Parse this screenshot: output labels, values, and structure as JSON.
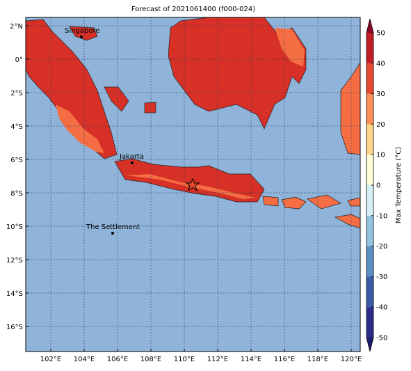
{
  "map": {
    "title": "Forecast of 2021061400 (f000-024)",
    "lon_ticks": [
      {
        "value": 102,
        "label": "102°E"
      },
      {
        "value": 104,
        "label": "104°E"
      },
      {
        "value": 106,
        "label": "106°E"
      },
      {
        "value": 108,
        "label": "108°E"
      },
      {
        "value": 110,
        "label": "110°E"
      },
      {
        "value": 112,
        "label": "112°E"
      },
      {
        "value": 114,
        "label": "114°E"
      },
      {
        "value": 116,
        "label": "116°E"
      },
      {
        "value": 118,
        "label": "118°E"
      },
      {
        "value": 120,
        "label": "120°E"
      }
    ],
    "lat_ticks": [
      {
        "value": 2,
        "label": "2°N"
      },
      {
        "value": 0,
        "label": "0°"
      },
      {
        "value": -2,
        "label": "2°S"
      },
      {
        "value": -4,
        "label": "4°S"
      },
      {
        "value": -6,
        "label": "6°S"
      },
      {
        "value": -8,
        "label": "8°S"
      },
      {
        "value": -10,
        "label": "10°S"
      },
      {
        "value": -12,
        "label": "12°S"
      },
      {
        "value": -14,
        "label": "14°S"
      },
      {
        "value": -16,
        "label": "16°S"
      }
    ],
    "places": [
      {
        "label": "Singapore"
      },
      {
        "label": "Jakarta"
      },
      {
        "label": "The Settlement"
      }
    ],
    "colorbar": {
      "label": "Max Temperature (°C)",
      "ticks": [
        -50,
        -40,
        -30,
        -20,
        -10,
        0,
        10,
        20,
        30,
        40,
        50
      ],
      "colors": [
        "#2b2b8c",
        "#3a5ba8",
        "#5b8fc4",
        "#94c3e0",
        "#d6eef6",
        "#fefdd8",
        "#fdd58a",
        "#fb8f55",
        "#e8482f",
        "#c21d24"
      ],
      "extend_colors": [
        "#1c1c70",
        "#8a0a26"
      ]
    }
  }
}
